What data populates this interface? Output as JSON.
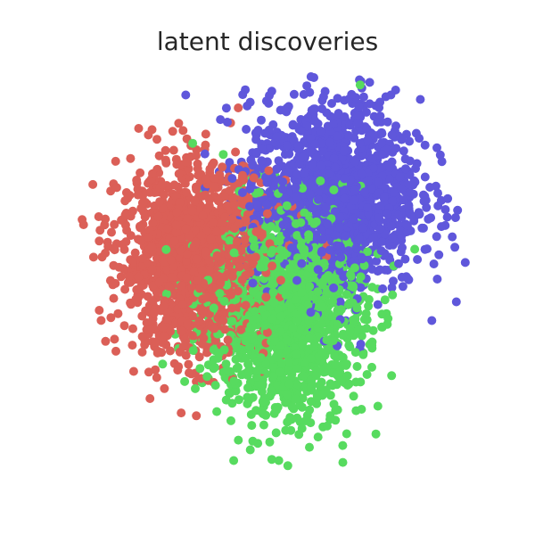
{
  "chart_data": {
    "type": "scatter",
    "title": "latent discoveries",
    "xlabel": "",
    "ylabel": "",
    "grid": false,
    "axes_visible": false,
    "xlim": [
      -4.2,
      4.6
    ],
    "ylim": [
      -4.0,
      4.0
    ],
    "series": [
      {
        "color": "#db5f57",
        "center": [
          -1.7,
          0.2
        ],
        "spread": [
          0.85,
          0.95
        ],
        "count": 1500
      },
      {
        "color": "#57db5f",
        "center": [
          0.4,
          -0.9
        ],
        "spread": [
          0.9,
          1.1
        ],
        "count": 1500
      },
      {
        "color": "#5f57db",
        "center": [
          1.5,
          1.5
        ],
        "spread": [
          1.0,
          1.0
        ],
        "count": 1500
      }
    ]
  }
}
